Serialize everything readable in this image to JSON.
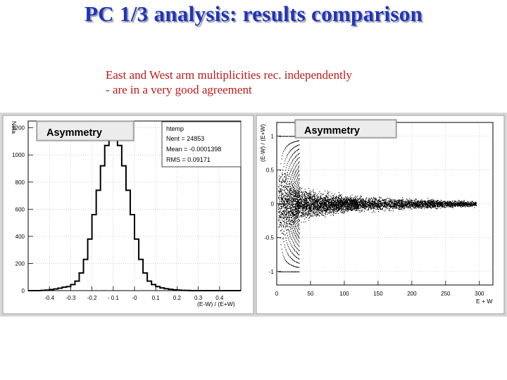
{
  "slide": {
    "title": "PC 1/3 analysis: results comparison",
    "subtitle_lines": [
      "East and West arm multiplicities rec. independently",
      "- are in a very good agreement"
    ]
  },
  "colors": {
    "title": "#2233bb",
    "subtitle": "#c01818",
    "frame_background": "#d8d8d8",
    "plot_background": "#ffffff",
    "grid": "#bdbdbd",
    "histogram_line": "#000000"
  },
  "chart_data": [
    {
      "type": "bar",
      "panel_title": "Asymmetry",
      "stats_box": {
        "name": "htemp",
        "lines": [
          "htemp",
          "Nent = 24853",
          "Mean  = -0.0001398",
          "RMS   = 0.09171"
        ]
      },
      "ylabel": "Ndta",
      "xlabel": "(E-W) / (E+W)",
      "xlim": [
        -0.5,
        0.5
      ],
      "ylim": [
        0,
        1250
      ],
      "xticks": [
        -0.4,
        -0.3,
        -0.2,
        -0.1,
        0,
        0.1,
        0.2,
        0.3,
        0.4
      ],
      "xtick_labels": [
        "-0.4",
        "-0.3",
        "-0.2",
        "- 0.1",
        "-0",
        "0.1",
        "0.2",
        "0.3",
        "0.4"
      ],
      "yticks": [
        0,
        200,
        400,
        600,
        800,
        1000,
        1200
      ],
      "ytick_labels": [
        "0",
        "200",
        "400",
        "600",
        "800",
        "1000",
        "1200"
      ],
      "grid": true,
      "bin_width": 0.02,
      "bins_low_edge": [
        -0.5,
        -0.48,
        -0.46,
        -0.44,
        -0.42,
        -0.4,
        -0.38,
        -0.36,
        -0.34,
        -0.32,
        -0.3,
        -0.28,
        -0.26,
        -0.24,
        -0.22,
        -0.2,
        -0.18,
        -0.16,
        -0.14,
        -0.12,
        -0.1,
        -0.08,
        -0.06,
        -0.04,
        -0.02,
        0.0,
        0.02,
        0.04,
        0.06,
        0.08,
        0.1,
        0.12,
        0.14,
        0.16,
        0.18,
        0.2,
        0.22,
        0.24,
        0.26,
        0.28,
        0.3,
        0.32,
        0.34,
        0.36,
        0.38,
        0.4,
        0.42,
        0.44,
        0.46,
        0.48
      ],
      "values": [
        0,
        0,
        0,
        2,
        4,
        8,
        12,
        18,
        25,
        30,
        45,
        70,
        130,
        230,
        380,
        560,
        740,
        920,
        1070,
        1190,
        1190,
        1070,
        920,
        740,
        560,
        380,
        230,
        130,
        70,
        45,
        30,
        20,
        14,
        10,
        6,
        4,
        2,
        1,
        0,
        0,
        0,
        0,
        0,
        0,
        0,
        0,
        0,
        0,
        0,
        0
      ]
    },
    {
      "type": "scatter",
      "panel_title": "Asymmetry",
      "ylabel": "(E-W) / (E+W)",
      "xlabel": "E + W",
      "xlim": [
        0,
        320
      ],
      "ylim": [
        -1.2,
        1.2
      ],
      "xticks": [
        0,
        50,
        100,
        150,
        200,
        250,
        300
      ],
      "xtick_labels": [
        "0",
        "50",
        "100",
        "150",
        "200",
        "250",
        "300"
      ],
      "yticks": [
        1,
        0.5,
        0,
        -0.5,
        -1
      ],
      "ytick_labels": [
        "1",
        "0.5",
        "0",
        "-0.5",
        "-1"
      ],
      "grid": true,
      "points_description": "dense cloud centred on 0 with spread narrowing as E+W increases; discrete bands at low E+W",
      "envelope": {
        "x": [
          2,
          10,
          20,
          30,
          50,
          75,
          100,
          150,
          200,
          250,
          290
        ],
        "y_spread": [
          1.0,
          0.95,
          0.75,
          0.55,
          0.42,
          0.32,
          0.27,
          0.2,
          0.16,
          0.12,
          0.08
        ]
      }
    }
  ]
}
